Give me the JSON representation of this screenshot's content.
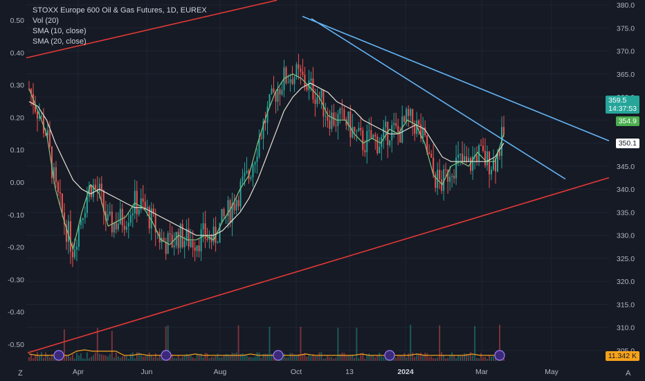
{
  "chart_data": {
    "type": "candlestick",
    "title": "STOXX Europe 600 Oil & Gas Futures, 1D, EUREX",
    "indicators": [
      "Vol (20)",
      "SMA (10, close)",
      "SMA (20, close)"
    ],
    "right_axis": {
      "ticks": [
        "380.0",
        "375.0",
        "370.0",
        "365.0",
        "360.0",
        "355.0",
        "350.0",
        "345.0",
        "340.0",
        "335.0",
        "330.0",
        "325.0",
        "320.0",
        "315.0",
        "310.0",
        "305.0"
      ]
    },
    "left_axis": {
      "ticks": [
        "0.50",
        "0.40",
        "0.30",
        "0.20",
        "0.10",
        "0.00",
        "-0.10",
        "-0.20",
        "-0.30",
        "-0.40",
        "-0.50"
      ]
    },
    "x_axis": {
      "ticks": [
        "Apr",
        "Jun",
        "Aug",
        "Oct",
        "13",
        "2024",
        "Mar",
        "May"
      ]
    },
    "price_tags": [
      {
        "label": "359.5",
        "sub": "14:37:53",
        "color": "#26a69a"
      },
      {
        "label": "354.9",
        "color": "#4caf50"
      },
      {
        "label": "350.1",
        "color": "#ffffff"
      },
      {
        "label": "11.342 K",
        "color": "#f7a21b"
      }
    ],
    "sma10_closes": [
      361.8,
      357,
      352,
      340,
      333,
      327,
      335,
      341,
      339,
      332,
      333,
      334,
      337,
      336,
      333,
      329,
      328,
      330,
      329,
      329,
      330,
      329,
      333,
      336,
      340,
      343,
      350,
      356,
      361,
      364,
      365,
      364,
      362,
      360,
      356,
      355,
      355,
      352,
      350,
      351,
      350,
      353,
      352,
      355,
      354,
      350,
      343,
      341,
      345,
      346,
      345,
      348,
      346,
      346,
      352
    ],
    "sma20_closes": [
      359,
      358,
      355,
      350,
      346,
      342,
      340,
      339,
      340,
      339,
      338,
      337,
      336,
      336,
      335,
      334,
      333,
      332,
      331,
      330,
      330,
      330,
      331,
      333,
      335,
      338,
      342,
      347,
      352,
      357,
      360,
      362,
      363,
      362,
      361,
      359,
      358,
      357,
      355,
      354,
      353,
      352,
      352,
      353,
      354,
      353,
      350,
      347,
      346,
      346,
      346,
      346,
      346,
      347,
      350
    ],
    "colors": {
      "up": "#26a69a",
      "down": "#ef5350",
      "sma10": "#81c784",
      "sma20": "#e8e3d6",
      "trend_red": "#e53935",
      "trend_blue": "#64b5f6",
      "volume_ma": "#f7a21b"
    }
  },
  "corners": {
    "left": "Z",
    "right": "A"
  }
}
